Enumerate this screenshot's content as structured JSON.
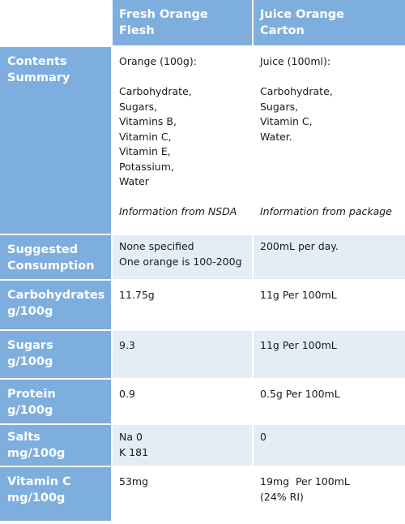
{
  "header": {
    "col1": [
      "Fresh Orange",
      "Flesh"
    ],
    "col2": [
      "Juice Orange",
      "Carton"
    ]
  },
  "rows": [
    {
      "label": [
        "Contents",
        "Summary"
      ],
      "fresh": {
        "intro": "Orange (100g):",
        "items": [
          "Carbohydrate,",
          "Sugars,",
          "Vitamins B,",
          "Vitamin C,",
          "Vitamin E,",
          "Potassium,",
          "Water"
        ],
        "source": "Information from NSDA"
      },
      "juice": {
        "intro": "Juice (100ml):",
        "items": [
          "Carbohydrate,",
          "Sugars,",
          "Vitamin C,",
          "Water."
        ],
        "source": "Information from package"
      }
    },
    {
      "label": [
        "Suggested",
        "Consumption"
      ],
      "fresh": [
        "None specified",
        "One orange is 100-200g"
      ],
      "juice": [
        "200mL per day."
      ]
    },
    {
      "label": [
        "Carbohydrates",
        "g/100g"
      ],
      "fresh": [
        "11.75g"
      ],
      "juice": [
        "11g Per 100mL"
      ]
    },
    {
      "label": [
        "Sugars",
        "g/100g"
      ],
      "fresh": [
        "9.3"
      ],
      "juice": [
        "11g Per 100mL"
      ]
    },
    {
      "label": [
        "Protein",
        "g/100g"
      ],
      "fresh": [
        "0.9"
      ],
      "juice": [
        "0.5g Per 100mL"
      ]
    },
    {
      "label": [
        "Salts",
        "mg/100g"
      ],
      "fresh": [
        "Na 0",
        "K 181"
      ],
      "juice": [
        "0"
      ]
    },
    {
      "label": [
        "Vitamin C",
        "mg/100g"
      ],
      "fresh": [
        "53mg"
      ],
      "juice": [
        "19mg  Per 100mL",
        "(24% RI)"
      ]
    }
  ]
}
